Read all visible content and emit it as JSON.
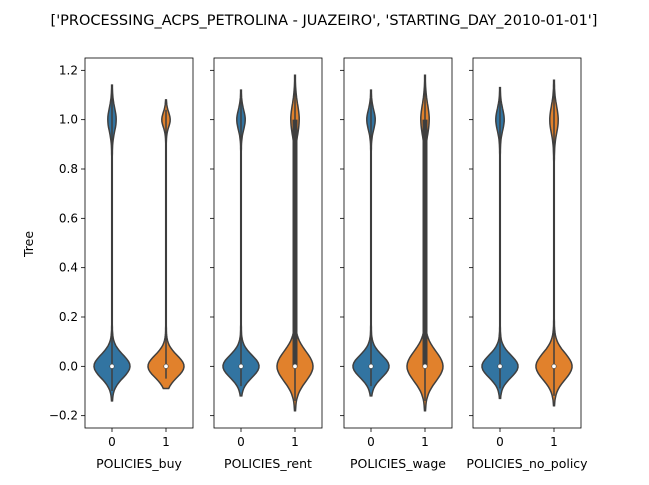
{
  "title": "['PROCESSING_ACPS_PETROLINA - JUAZEIRO', 'STARTING_DAY_2010-01-01']",
  "chart_data": {
    "type": "violin",
    "title": "['PROCESSING_ACPS_PETROLINA - JUAZEIRO', 'STARTING_DAY_2010-01-01']",
    "ylabel": "Tree",
    "ylim": [
      -0.25,
      1.25
    ],
    "yticks": [
      "−0.2",
      "0.0",
      "0.2",
      "0.4",
      "0.6",
      "0.8",
      "1.0",
      "1.2"
    ],
    "ytick_values": [
      -0.2,
      0.0,
      0.2,
      0.4,
      0.6,
      0.8,
      1.0,
      1.2
    ],
    "categories": [
      "0",
      "1"
    ],
    "colors": {
      "0": "#3274a1",
      "1": "#e1812c",
      "outline": "#3f3f3f"
    },
    "grid": false,
    "sharey": true,
    "panels": [
      {
        "xlabel": "POLICIES_buy",
        "violins": [
          {
            "category": "0",
            "min": -0.14,
            "max": 1.14,
            "median": 0.0,
            "q1": 0.0,
            "q3": 0.0
          },
          {
            "category": "1",
            "min": -0.09,
            "max": 1.08,
            "median": 0.0,
            "q1": 0.0,
            "q3": 0.0
          }
        ]
      },
      {
        "xlabel": "POLICIES_rent",
        "violins": [
          {
            "category": "0",
            "min": -0.12,
            "max": 1.12,
            "median": 0.0,
            "q1": 0.0,
            "q3": 0.0
          },
          {
            "category": "1",
            "min": -0.18,
            "max": 1.18,
            "median": 0.0,
            "q1": 0.0,
            "q3": 1.0
          }
        ]
      },
      {
        "xlabel": "POLICIES_wage",
        "violins": [
          {
            "category": "0",
            "min": -0.12,
            "max": 1.12,
            "median": 0.0,
            "q1": 0.0,
            "q3": 0.0
          },
          {
            "category": "1",
            "min": -0.18,
            "max": 1.18,
            "median": 0.0,
            "q1": 0.0,
            "q3": 1.0
          }
        ]
      },
      {
        "xlabel": "POLICIES_no_policy",
        "violins": [
          {
            "category": "0",
            "min": -0.13,
            "max": 1.13,
            "median": 0.0,
            "q1": 0.0,
            "q3": 0.0
          },
          {
            "category": "1",
            "min": -0.16,
            "max": 1.16,
            "median": 0.0,
            "q1": 0.0,
            "q3": 0.0
          }
        ]
      }
    ]
  }
}
